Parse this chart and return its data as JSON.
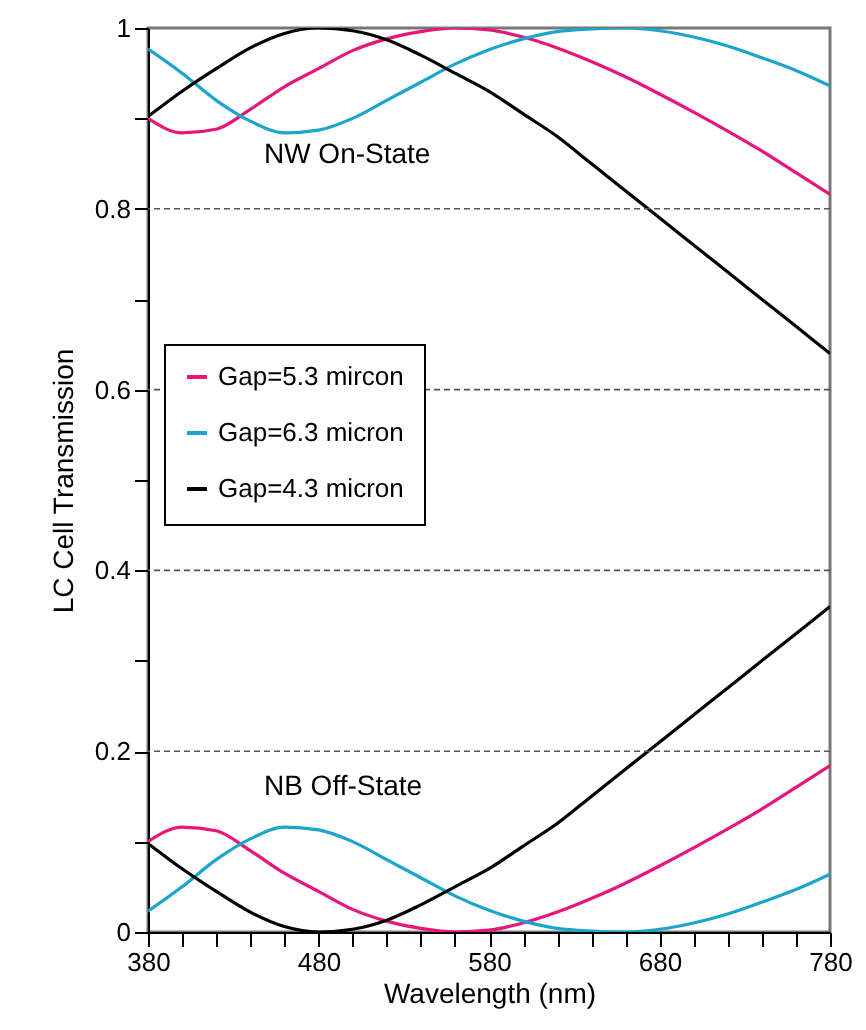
{
  "chart_data": {
    "type": "line",
    "xlabel": "Wavelength (nm)",
    "ylabel": "LC Cell Transmission",
    "x": [
      380,
      400,
      420,
      440,
      460,
      480,
      500,
      520,
      540,
      560,
      580,
      600,
      620,
      640,
      660,
      680,
      700,
      720,
      740,
      760,
      780
    ],
    "series": [
      {
        "name": "Gap=5.3 mircon",
        "color": "#e8157a",
        "values": [
          0.9,
          0.884,
          0.888,
          0.91,
          0.935,
          0.955,
          0.975,
          0.988,
          0.996,
          1,
          0.998,
          0.99,
          0.978,
          0.963,
          0.946,
          0.927,
          0.907,
          0.886,
          0.864,
          0.84,
          0.816
        ]
      },
      {
        "name": "Gap=6.3 micron",
        "color": "#1aa6cc",
        "values": [
          0.977,
          0.95,
          0.92,
          0.897,
          0.884,
          0.887,
          0.9,
          0.92,
          0.94,
          0.96,
          0.976,
          0.988,
          0.996,
          0.999,
          1,
          0.997,
          0.99,
          0.98,
          0.967,
          0.953,
          0.936
        ]
      },
      {
        "name": "Gap=4.3 micron",
        "color": "#000000",
        "values": [
          0.902,
          0.93,
          0.955,
          0.978,
          0.994,
          1,
          0.997,
          0.987,
          0.97,
          0.95,
          0.93,
          0.905,
          0.88,
          0.85,
          0.82,
          0.79,
          0.76,
          0.73,
          0.7,
          0.67,
          0.64
        ]
      },
      {
        "color": "#e8157a",
        "values": [
          0.1,
          0.116,
          0.112,
          0.09,
          0.065,
          0.045,
          0.025,
          0.012,
          0.004,
          0,
          0.002,
          0.01,
          0.022,
          0.037,
          0.054,
          0.073,
          0.093,
          0.114,
          0.136,
          0.16,
          0.184
        ]
      },
      {
        "color": "#1aa6cc",
        "values": [
          0.023,
          0.05,
          0.08,
          0.103,
          0.116,
          0.113,
          0.1,
          0.08,
          0.06,
          0.04,
          0.024,
          0.012,
          0.004,
          0.001,
          0,
          0.003,
          0.01,
          0.02,
          0.033,
          0.047,
          0.064
        ]
      },
      {
        "color": "#000000",
        "values": [
          0.098,
          0.07,
          0.045,
          0.022,
          0.006,
          0,
          0.003,
          0.013,
          0.03,
          0.05,
          0.07,
          0.095,
          0.12,
          0.15,
          0.18,
          0.21,
          0.24,
          0.27,
          0.3,
          0.33,
          0.36
        ]
      }
    ],
    "xlim": [
      380,
      780
    ],
    "xticks": [
      380,
      {
        "value": 400,
        "label": null
      },
      {
        "value": 420,
        "label": null
      },
      {
        "value": 440,
        "label": null
      },
      {
        "value": 460,
        "label": null
      },
      480,
      {
        "value": 500,
        "label": null
      },
      {
        "value": 520,
        "label": null
      },
      {
        "value": 540,
        "label": null
      },
      {
        "value": 560,
        "label": null
      },
      580,
      {
        "value": 600,
        "label": null
      },
      {
        "value": 620,
        "label": null
      },
      {
        "value": 640,
        "label": null
      },
      {
        "value": 660,
        "label": null
      },
      680,
      {
        "value": 700,
        "label": null
      },
      {
        "value": 720,
        "label": null
      },
      {
        "value": 740,
        "label": null
      },
      {
        "value": 760,
        "label": null
      },
      780
    ],
    "ylim": [
      0,
      1
    ],
    "yticks": [
      0,
      {
        "value": 0.1,
        "label": null
      },
      0.2,
      {
        "value": 0.3,
        "label": null
      },
      0.4,
      {
        "value": 0.5,
        "label": null
      },
      0.6,
      {
        "value": 0.7,
        "label": null
      },
      0.8,
      {
        "value": 0.9,
        "label": null
      },
      1
    ],
    "grid": "y",
    "legend": "left",
    "marker": "none",
    "line_style": "solid",
    "annotations": [
      "NW On-State",
      "NB Off-State"
    ]
  }
}
